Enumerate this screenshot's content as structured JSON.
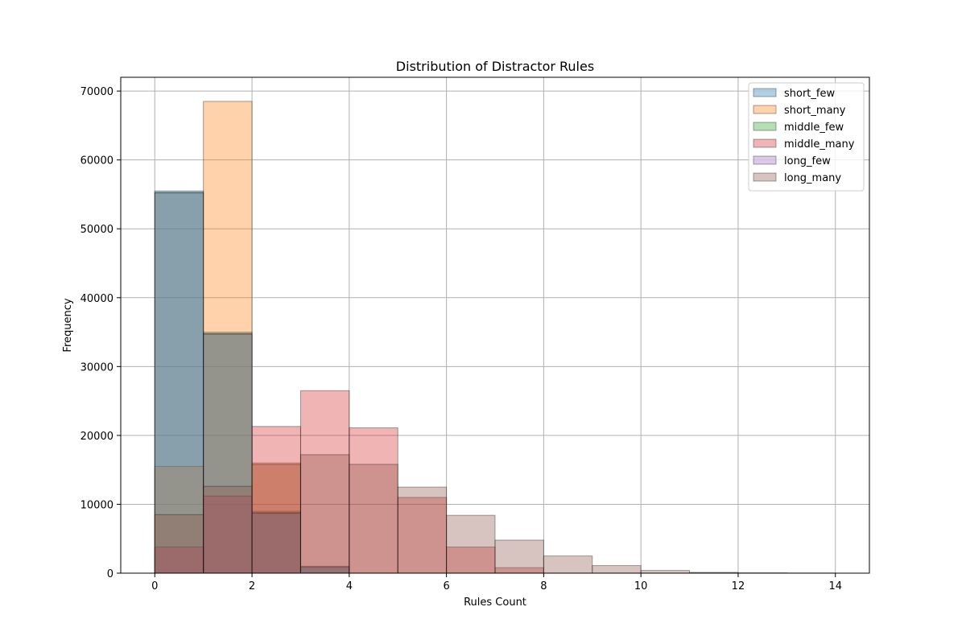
{
  "chart_data": {
    "type": "bar",
    "title": "Distribution of Distractor Rules",
    "xlabel": "Rules Count",
    "ylabel": "Frequency",
    "xlim": [
      -0.7,
      14.7
    ],
    "ylim": [
      0,
      72000
    ],
    "xticks": [
      0,
      2,
      4,
      6,
      8,
      10,
      12,
      14
    ],
    "yticks": [
      0,
      10000,
      20000,
      30000,
      40000,
      50000,
      60000,
      70000
    ],
    "grid": true,
    "legend_position": "top-right",
    "bin_width": 1,
    "bin_edges": [
      0,
      1,
      2,
      3,
      4,
      5,
      6,
      7,
      8,
      9,
      10,
      11,
      12,
      13,
      14
    ],
    "series": [
      {
        "name": "short_few",
        "color": "#1f77b4",
        "values": [
          55500,
          35000,
          9000,
          800,
          0,
          0,
          0,
          0,
          0,
          0,
          0,
          0,
          0,
          0
        ]
      },
      {
        "name": "short_many",
        "color": "#ff7f0e",
        "values": [
          15500,
          68500,
          16000,
          0,
          0,
          0,
          0,
          0,
          0,
          0,
          0,
          0,
          0,
          0
        ]
      },
      {
        "name": "middle_few",
        "color": "#2ca02c",
        "values": [
          55300,
          34800,
          8800,
          1000,
          0,
          0,
          0,
          0,
          0,
          0,
          0,
          0,
          0,
          0
        ]
      },
      {
        "name": "middle_many",
        "color": "#d62728",
        "values": [
          3800,
          11200,
          21300,
          26500,
          21100,
          11000,
          3800,
          800,
          0,
          0,
          0,
          0,
          0,
          0
        ]
      },
      {
        "name": "long_few",
        "color": "#9467bd",
        "values": [
          55200,
          34700,
          8700,
          900,
          0,
          0,
          0,
          0,
          0,
          0,
          0,
          0,
          0,
          0
        ]
      },
      {
        "name": "long_many",
        "color": "#8c564b",
        "values": [
          8500,
          12600,
          15800,
          17200,
          15800,
          12500,
          8400,
          4800,
          2500,
          1100,
          400,
          120,
          50,
          20
        ]
      }
    ]
  }
}
